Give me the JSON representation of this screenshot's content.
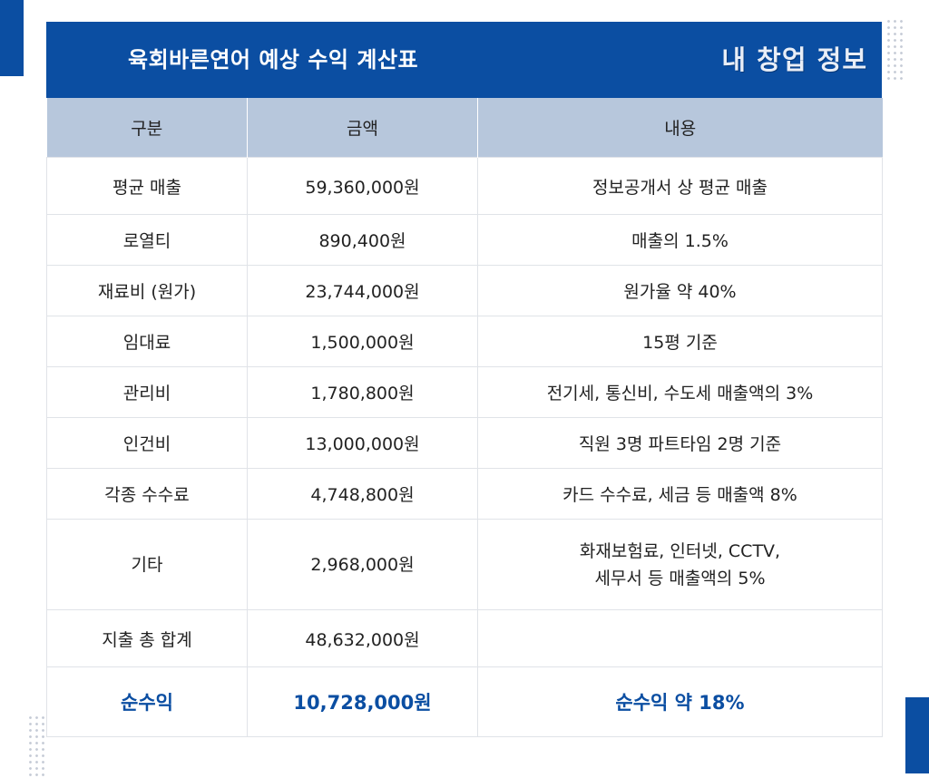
{
  "header": {
    "title": "육회바른연어 예상 수익 계산표",
    "logo_text": "내 창업 정보"
  },
  "table": {
    "columns": [
      "구분",
      "금액",
      "내용"
    ],
    "rows": [
      {
        "category": "평균 매출",
        "amount": "59,360,000원",
        "note": "정보공개서 상 평균 매출"
      },
      {
        "category": "로열티",
        "amount": "890,400원",
        "note": "매출의 1.5%"
      },
      {
        "category": "재료비 (원가)",
        "amount": "23,744,000원",
        "note": "원가율 약 40%"
      },
      {
        "category": "임대료",
        "amount": "1,500,000원",
        "note": "15평 기준"
      },
      {
        "category": "관리비",
        "amount": "1,780,800원",
        "note": "전기세, 통신비, 수도세 매출액의 3%"
      },
      {
        "category": "인건비",
        "amount": "13,000,000원",
        "note": "직원 3명 파트타임 2명 기준"
      },
      {
        "category": "각종 수수료",
        "amount": "4,748,800원",
        "note": "카드 수수료, 세금 등 매출액 8%"
      },
      {
        "category": "기타",
        "amount": "2,968,000원",
        "note_line1": "화재보험료, 인터넷, CCTV,",
        "note_line2": "세무서 등 매출액의 5%"
      },
      {
        "category": "지출 총 합계",
        "amount": "48,632,000원",
        "note": ""
      }
    ],
    "total": {
      "category": "순수익",
      "amount": "10,728,000원",
      "note": "순수익 약 18%"
    }
  },
  "colors": {
    "brand_blue": "#0b4ea2",
    "header_row_bg": "#b7c7dc"
  }
}
